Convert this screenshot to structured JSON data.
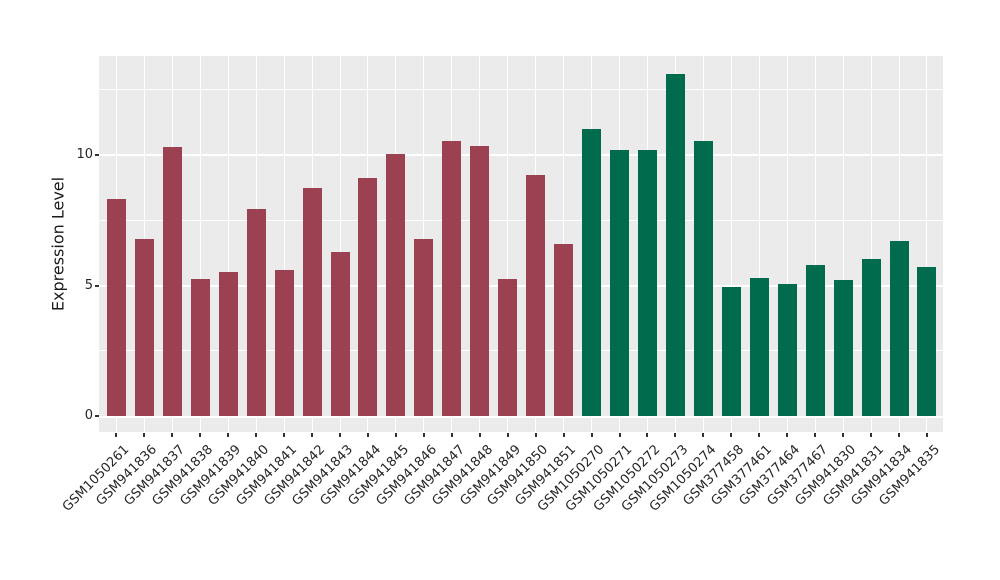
{
  "figure": {
    "panel_background": "#EBEBEB",
    "gridline_color": "#FFFFFF",
    "tick_color": "#333333",
    "text_color": "#262626"
  },
  "chart_data": {
    "type": "bar",
    "title": "",
    "xlabel": "",
    "ylabel": "Expression Level",
    "ylim": [
      0,
      13.8
    ],
    "yticks": [
      0,
      5,
      10
    ],
    "yticks_minor": [
      2.5,
      7.5,
      12.5
    ],
    "grid": true,
    "legend": false,
    "categories": [
      "GSM1050261",
      "GSM941836",
      "GSM941837",
      "GSM941838",
      "GSM941839",
      "GSM941840",
      "GSM941841",
      "GSM941842",
      "GSM941843",
      "GSM941844",
      "GSM941845",
      "GSM941846",
      "GSM941847",
      "GSM941848",
      "GSM941849",
      "GSM941850",
      "GSM941851",
      "GSM1050270",
      "GSM1050271",
      "GSM1050272",
      "GSM1050273",
      "GSM1050274",
      "GSM377458",
      "GSM377461",
      "GSM377464",
      "GSM377467",
      "GSM941830",
      "GSM941831",
      "GSM941834",
      "GSM941835"
    ],
    "values": [
      8.3,
      6.8,
      10.3,
      5.25,
      5.5,
      7.95,
      5.6,
      8.75,
      6.3,
      9.1,
      10.05,
      6.8,
      10.55,
      10.35,
      5.25,
      9.25,
      6.6,
      11.0,
      10.2,
      10.2,
      13.1,
      10.55,
      4.95,
      5.3,
      5.05,
      5.8,
      5.2,
      6.0,
      6.7,
      5.7
    ],
    "bar_group": [
      "group_a",
      "group_a",
      "group_a",
      "group_a",
      "group_a",
      "group_a",
      "group_a",
      "group_a",
      "group_a",
      "group_a",
      "group_a",
      "group_a",
      "group_a",
      "group_a",
      "group_a",
      "group_a",
      "group_a",
      "group_b",
      "group_b",
      "group_b",
      "group_b",
      "group_b",
      "group_b",
      "group_b",
      "group_b",
      "group_b",
      "group_b",
      "group_b",
      "group_b",
      "group_b"
    ],
    "group_colors": {
      "group_a": "#9B4152",
      "group_b": "#016B4D"
    }
  }
}
